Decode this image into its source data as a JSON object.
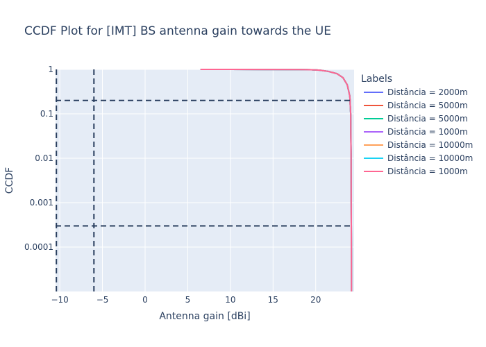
{
  "chart_data": {
    "type": "line",
    "title": "CCDF Plot for [IMT] BS antenna gain towards the UE",
    "xlabel": "Antenna gain [dBi]",
    "ylabel": "CCDF",
    "xlim": [
      -10.5,
      24.5
    ],
    "ylim_log10": [
      -5,
      0
    ],
    "y_scale": "log",
    "grid": true,
    "x_ticks": [
      -10,
      -5,
      0,
      5,
      10,
      15,
      20
    ],
    "x_tick_labels": [
      "−10",
      "−5",
      "0",
      "5",
      "10",
      "15",
      "20"
    ],
    "y_ticks": [
      1,
      0.1,
      0.01,
      0.001,
      0.0001
    ],
    "y_tick_labels": [
      "1",
      "0.1",
      "0.01",
      "0.001",
      "0.0001"
    ],
    "legend": {
      "title": "Labels",
      "placement": "right"
    },
    "series": [
      {
        "name": "Distância = 2000m",
        "color": "#636efa",
        "x": [
          6.5,
          10,
          15,
          18,
          19.5,
          20.5,
          21.5,
          22.5,
          23.2,
          23.7,
          24.0,
          24.1,
          24.15,
          24.2
        ],
        "y": [
          1,
          0.999,
          0.995,
          0.99,
          0.98,
          0.96,
          0.9,
          0.8,
          0.65,
          0.45,
          0.25,
          0.1,
          0.01,
          1e-05
        ]
      },
      {
        "name": "Distância = 5000m",
        "color": "#ef553b",
        "x": [
          6.5,
          10,
          15,
          18,
          19.5,
          20.5,
          21.5,
          22.5,
          23.2,
          23.7,
          24.0,
          24.1,
          24.15,
          24.2
        ],
        "y": [
          1,
          0.999,
          0.995,
          0.99,
          0.98,
          0.96,
          0.9,
          0.8,
          0.65,
          0.45,
          0.25,
          0.1,
          0.01,
          1e-05
        ]
      },
      {
        "name": "Distância = 5000m",
        "color": "#00cc96",
        "x": [
          6.5,
          10,
          15,
          18,
          19.5,
          20.5,
          21.5,
          22.5,
          23.2,
          23.7,
          24.0,
          24.1,
          24.15,
          24.2
        ],
        "y": [
          1,
          0.999,
          0.995,
          0.99,
          0.98,
          0.96,
          0.9,
          0.8,
          0.65,
          0.45,
          0.25,
          0.1,
          0.01,
          1e-05
        ]
      },
      {
        "name": "Distância = 1000m",
        "color": "#ab63fa",
        "x": [
          6.5,
          10,
          15,
          18,
          19.5,
          20.5,
          21.5,
          22.5,
          23.2,
          23.7,
          24.0,
          24.1,
          24.15,
          24.2
        ],
        "y": [
          1,
          0.999,
          0.995,
          0.99,
          0.98,
          0.96,
          0.9,
          0.8,
          0.65,
          0.45,
          0.25,
          0.1,
          0.01,
          1e-05
        ]
      },
      {
        "name": "Distância = 10000m",
        "color": "#ffa15a",
        "x": [
          6.5,
          10,
          15,
          18,
          19.5,
          20.5,
          21.5,
          22.5,
          23.2,
          23.7,
          24.0,
          24.1,
          24.15,
          24.2
        ],
        "y": [
          1,
          0.999,
          0.995,
          0.99,
          0.98,
          0.96,
          0.9,
          0.8,
          0.65,
          0.45,
          0.25,
          0.1,
          0.01,
          1e-05
        ]
      },
      {
        "name": "Distância = 10000m",
        "color": "#19d3f3",
        "x": [
          6.5,
          10,
          15,
          18,
          19.5,
          20.5,
          21.5,
          22.5,
          23.2,
          23.7,
          24.0,
          24.1,
          24.15,
          24.2
        ],
        "y": [
          1,
          0.999,
          0.995,
          0.99,
          0.98,
          0.96,
          0.9,
          0.8,
          0.65,
          0.45,
          0.25,
          0.1,
          0.01,
          1e-05
        ]
      },
      {
        "name": "Distância = 1000m",
        "color": "#ff6692",
        "x": [
          6.5,
          10,
          15,
          18,
          19.5,
          20.5,
          21.5,
          22.5,
          23.2,
          23.7,
          24.0,
          24.1,
          24.15,
          24.2
        ],
        "y": [
          1,
          0.999,
          0.995,
          0.99,
          0.98,
          0.96,
          0.9,
          0.8,
          0.65,
          0.45,
          0.25,
          0.1,
          0.01,
          1e-05
        ]
      }
    ],
    "reference_lines": {
      "horizontal_y": [
        0.2,
        0.0003
      ],
      "vertical_x": [
        -10.4,
        -6
      ],
      "color": "#2a3f5f"
    },
    "colors": {
      "plot_background": "#e5ecf6",
      "grid": "#ffffff",
      "text": "#2a3f5f"
    }
  }
}
